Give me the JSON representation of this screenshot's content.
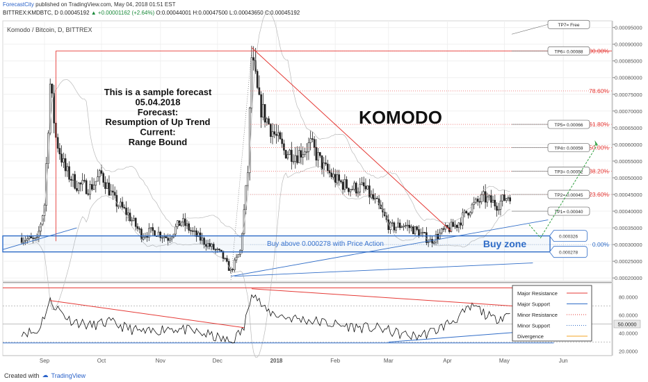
{
  "header": {
    "brand": "ForecastCity",
    "published": "published on TradingView.com, May 04, 2018 01:51 EST",
    "symbol": "BITTREX:KMDBTC, D",
    "last": "0.00045192",
    "change": "+0.00001162 (+2.64%)",
    "ohlc": "O:0.00044001 H:0.00047500 L:0.00043650 C:0.00045192"
  },
  "footer": {
    "created_with": "Created with",
    "brand": "TradingView"
  },
  "chart_data": [
    {
      "type": "candlestick",
      "title": "Komodo / Bitcoin, D, BITTREX",
      "watermark": "KOMODO",
      "note": [
        "This is a sample forecast",
        "05.04.2018",
        "Forecast:",
        "Resumption of Up Trend",
        "Current:",
        "Range Bound"
      ],
      "x_ticks": [
        "Sep",
        "Oct",
        "Nov",
        "Dec",
        "2018",
        "Feb",
        "Mar",
        "Apr",
        "May",
        "Jun"
      ],
      "y_ticks": [
        "0.00095000",
        "0.00090000",
        "0.00085000",
        "0.00080000",
        "0.00075000",
        "0.00070000",
        "0.00065000",
        "0.00060000",
        "0.00055000",
        "0.00050000",
        "0.00045000",
        "0.00040000",
        "0.00035000",
        "0.00030000",
        "0.00025000",
        "0.00020000"
      ],
      "ylim": [
        0.00019,
        0.00097
      ],
      "price_path": [
        [
          "Aug 20",
          0.00032
        ],
        [
          "Aug 28",
          0.00031
        ],
        [
          "Sep 1",
          0.00042
        ],
        [
          "Sep 4",
          0.00078
        ],
        [
          "Sep 7",
          0.00062
        ],
        [
          "Sep 12",
          0.00052
        ],
        [
          "Sep 18",
          0.00048
        ],
        [
          "Sep 25",
          0.00047
        ],
        [
          "Oct 1",
          0.00051
        ],
        [
          "Oct 8",
          0.00043
        ],
        [
          "Oct 15",
          0.00039
        ],
        [
          "Oct 22",
          0.00033
        ],
        [
          "Oct 29",
          0.00034
        ],
        [
          "Nov 5",
          0.00032
        ],
        [
          "Nov 12",
          0.00037
        ],
        [
          "Nov 19",
          0.00033
        ],
        [
          "Nov 26",
          0.0003
        ],
        [
          "Dec 3",
          0.00027
        ],
        [
          "Dec 8",
          0.00022
        ],
        [
          "Dec 13",
          0.00028
        ],
        [
          "Dec 17",
          0.00052
        ],
        [
          "Dec 19",
          0.00086
        ],
        [
          "Dec 23",
          0.00072
        ],
        [
          "Dec 29",
          0.00065
        ],
        [
          "Jan 5",
          0.00058
        ],
        [
          "Jan 12",
          0.00057
        ],
        [
          "Jan 19",
          0.0006
        ],
        [
          "Jan 26",
          0.00053
        ],
        [
          "Feb 2",
          0.00049
        ],
        [
          "Feb 9",
          0.00047
        ],
        [
          "Feb 16",
          0.00047
        ],
        [
          "Feb 23",
          0.00042
        ],
        [
          "Mar 2",
          0.00035
        ],
        [
          "Mar 9",
          0.00036
        ],
        [
          "Mar 16",
          0.00034
        ],
        [
          "Mar 23",
          0.00031
        ],
        [
          "Mar 30",
          0.00034
        ],
        [
          "Apr 6",
          0.00036
        ],
        [
          "Apr 13",
          0.00041
        ],
        [
          "Apr 20",
          0.00044
        ],
        [
          "Apr 27",
          0.00042
        ],
        [
          "May 4",
          0.00045
        ]
      ],
      "fib_levels": [
        {
          "label": "100.00%",
          "value": 0.00088
        },
        {
          "label": "78.60%",
          "value": 0.00076
        },
        {
          "label": "61.80%",
          "value": 0.00066
        },
        {
          "label": "50.00%",
          "value": 0.00059
        },
        {
          "label": "38.20%",
          "value": 0.00052
        },
        {
          "label": "23.60%",
          "value": 0.00045
        },
        {
          "label": "0.00%",
          "value": 0.0003
        }
      ],
      "targets": [
        {
          "label": "TP7= Free",
          "value": 0.00093
        },
        {
          "label": "TP6= 0.00088",
          "value": 0.00088
        },
        {
          "label": "TP5= 0.00066",
          "value": 0.00066
        },
        {
          "label": "TP4= 0.00059",
          "value": 0.00059
        },
        {
          "label": "TP3= 0.00052",
          "value": 0.00052
        },
        {
          "label": "TP2= 0.00045",
          "value": 0.00045
        },
        {
          "label": "TP1= 0.00040",
          "value": 0.0004
        }
      ],
      "buy_zone": {
        "label": "Buy zone",
        "text": "Buy above 0.000278 with Price Action",
        "high": 0.000326,
        "low": 0.000278,
        "high_label": "0.000326",
        "low_label": "0.000278"
      }
    },
    {
      "type": "line",
      "y_ticks": [
        "80.0000",
        "60.0000",
        "40.0000",
        "20.0000"
      ],
      "value_badge": "50.0000",
      "ylim": [
        15,
        95
      ],
      "rsi_path": [
        [
          "Aug 20",
          42
        ],
        [
          "Aug 28",
          40
        ],
        [
          "Sep 4",
          75
        ],
        [
          "Sep 14",
          55
        ],
        [
          "Sep 25",
          48
        ],
        [
          "Oct 5",
          52
        ],
        [
          "Oct 15",
          45
        ],
        [
          "Oct 25",
          40
        ],
        [
          "Nov 5",
          46
        ],
        [
          "Nov 15",
          43
        ],
        [
          "Nov 26",
          38
        ],
        [
          "Dec 8",
          30
        ],
        [
          "Dec 15",
          45
        ],
        [
          "Dec 19",
          88
        ],
        [
          "Dec 26",
          65
        ],
        [
          "Jan 5",
          58
        ],
        [
          "Jan 15",
          55
        ],
        [
          "Jan 25",
          52
        ],
        [
          "Feb 5",
          48
        ],
        [
          "Feb 15",
          46
        ],
        [
          "Feb 25",
          45
        ],
        [
          "Mar 5",
          40
        ],
        [
          "Mar 15",
          36
        ],
        [
          "Mar 25",
          42
        ],
        [
          "Apr 5",
          55
        ],
        [
          "Apr 15",
          70
        ],
        [
          "Apr 25",
          55
        ],
        [
          "May 4",
          62
        ]
      ],
      "legend": [
        {
          "name": "Major Resistance",
          "color": "#e53935",
          "style": "solid"
        },
        {
          "name": "Major Support",
          "color": "#2f6cc7",
          "style": "solid"
        },
        {
          "name": "Minor Resistance",
          "color": "#e53935",
          "style": "dotted"
        },
        {
          "name": "Minor Support",
          "color": "#2f6cc7",
          "style": "dotted"
        },
        {
          "name": "Divergence",
          "color": "#f5a623",
          "style": "solid"
        }
      ]
    }
  ],
  "colors": {
    "resistance": "#e53935",
    "support": "#2f6cc7",
    "buy_zone": "#2f6cc7",
    "up": "#ffffff",
    "down": "#222222",
    "arrow": "#2e9e3e"
  }
}
